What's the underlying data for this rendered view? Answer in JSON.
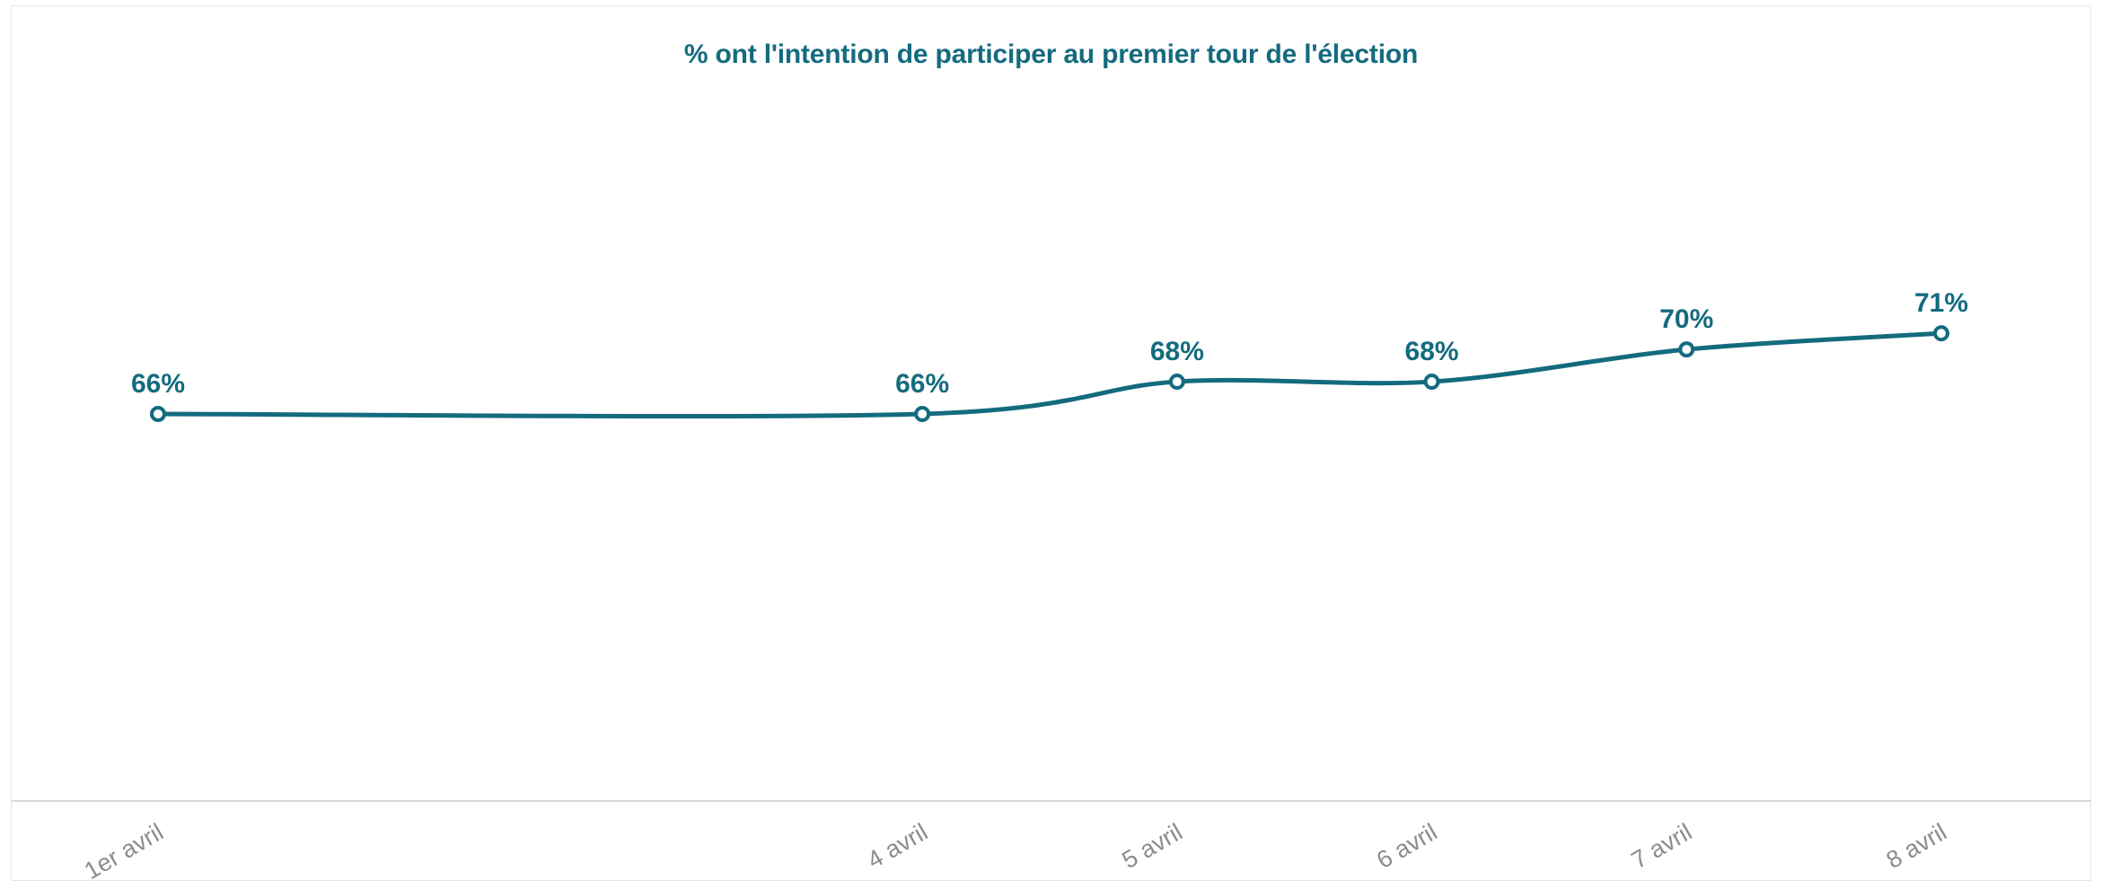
{
  "chart_data": {
    "type": "line",
    "title": "% ont l'intention de participer au premier tour de l'élection",
    "xlabel": "",
    "ylabel": "",
    "categories": [
      "1er avril",
      "4 avril",
      "5 avril",
      "6 avril",
      "7 avril",
      "8 avril"
    ],
    "x_days": [
      1,
      4,
      5,
      6,
      7,
      8
    ],
    "series": [
      {
        "name": "",
        "values": [
          66,
          66,
          68,
          68,
          70,
          71
        ],
        "labels": [
          "66%",
          "66%",
          "68%",
          "68%",
          "70%",
          "71%"
        ]
      }
    ],
    "ylim": [
      42,
      91
    ],
    "grid": false,
    "legend": "none",
    "colors": {
      "line": "#146b7e",
      "title": "#146b7e",
      "data_label": "#146b7e",
      "tick_label": "#8c8c8c",
      "axis": "#d9d9d9",
      "marker_fill": "#ffffff"
    }
  }
}
